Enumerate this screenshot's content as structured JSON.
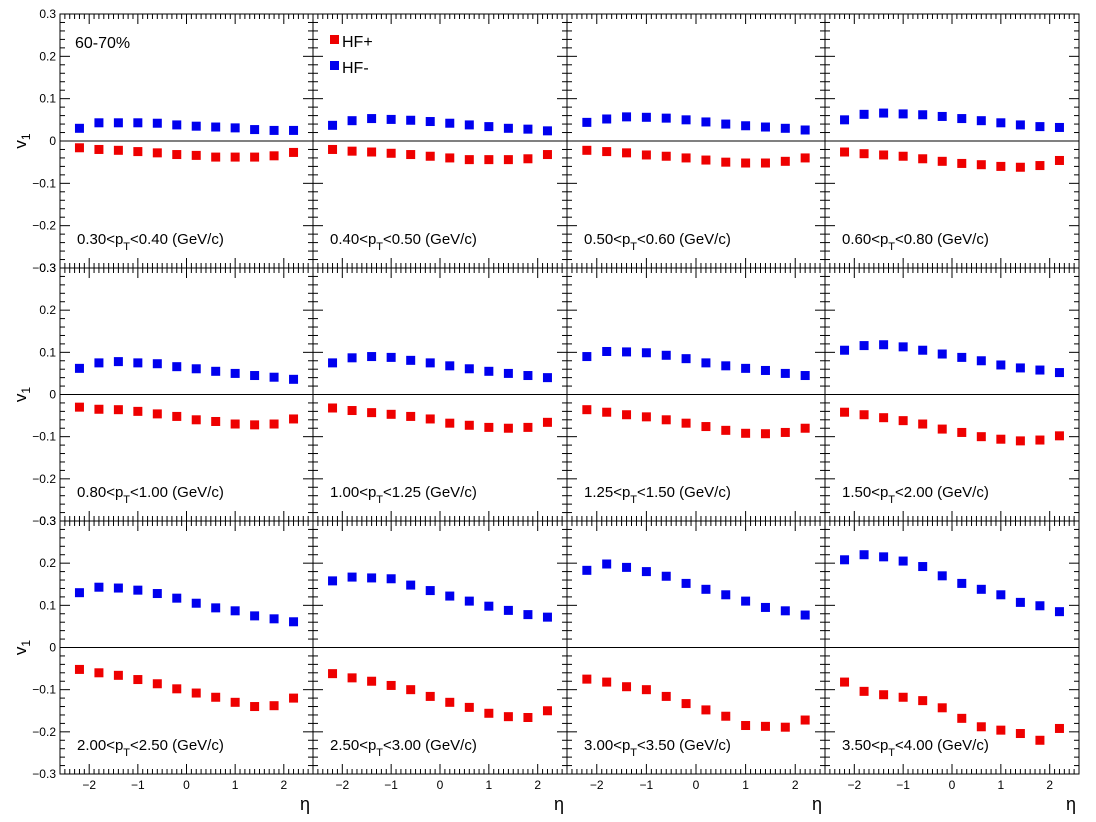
{
  "figure": {
    "centrality_label": "60-70%",
    "eta_label": "η",
    "v1_main": "v",
    "v1_sub": "1",
    "legend": [
      {
        "name": "HF+",
        "color": "#ee0000"
      },
      {
        "name": "HF-",
        "color": "#0000ee"
      }
    ],
    "pt_prefix": "p",
    "pt_sub": "T",
    "pt_unit": "(GeV/c)",
    "y_ticks": [
      {
        "v": 0.3,
        "label": "0.3"
      },
      {
        "v": 0.2,
        "label": "0.2"
      },
      {
        "v": 0.1,
        "label": "0.1"
      },
      {
        "v": 0,
        "label": "0"
      },
      {
        "v": -0.1,
        "label": "−0.1"
      },
      {
        "v": -0.2,
        "label": "−0.2"
      },
      {
        "v": -0.3,
        "label": "−0.3"
      }
    ],
    "x_ticks": [
      {
        "v": -2,
        "label": "−2"
      },
      {
        "v": -1,
        "label": "−1"
      },
      {
        "v": 0,
        "label": "0"
      },
      {
        "v": 1,
        "label": "1"
      },
      {
        "v": 2,
        "label": "2"
      }
    ]
  },
  "chart_data": {
    "type": "scatter",
    "xlabel": "η",
    "ylabel": "v1",
    "xlim": [
      -2.6,
      2.6
    ],
    "ylim": [
      -0.3,
      0.3
    ],
    "x": [
      -2.2,
      -1.8,
      -1.4,
      -1.0,
      -0.6,
      -0.2,
      0.2,
      0.6,
      1.0,
      1.4,
      1.8,
      2.2
    ],
    "panels": [
      {
        "lo": "0.30",
        "hi": "0.40",
        "hfp": [
          -0.016,
          -0.02,
          -0.022,
          -0.025,
          -0.028,
          -0.032,
          -0.034,
          -0.038,
          -0.038,
          -0.038,
          -0.035,
          -0.027
        ],
        "hfm": [
          0.03,
          0.043,
          0.043,
          0.043,
          0.042,
          0.038,
          0.035,
          0.033,
          0.031,
          0.027,
          0.025,
          0.025
        ]
      },
      {
        "lo": "0.40",
        "hi": "0.50",
        "hfp": [
          -0.02,
          -0.024,
          -0.026,
          -0.029,
          -0.032,
          -0.036,
          -0.04,
          -0.044,
          -0.044,
          -0.044,
          -0.042,
          -0.032
        ],
        "hfm": [
          0.037,
          0.048,
          0.053,
          0.051,
          0.049,
          0.046,
          0.042,
          0.038,
          0.034,
          0.03,
          0.028,
          0.024
        ]
      },
      {
        "lo": "0.50",
        "hi": "0.60",
        "hfp": [
          -0.022,
          -0.025,
          -0.028,
          -0.033,
          -0.036,
          -0.04,
          -0.045,
          -0.05,
          -0.052,
          -0.052,
          -0.048,
          -0.04
        ],
        "hfm": [
          0.044,
          0.052,
          0.057,
          0.056,
          0.054,
          0.05,
          0.045,
          0.04,
          0.036,
          0.033,
          0.03,
          0.026
        ]
      },
      {
        "lo": "0.60",
        "hi": "0.80",
        "hfp": [
          -0.026,
          -0.03,
          -0.033,
          -0.036,
          -0.042,
          -0.048,
          -0.053,
          -0.056,
          -0.06,
          -0.062,
          -0.058,
          -0.046
        ],
        "hfm": [
          0.05,
          0.063,
          0.066,
          0.064,
          0.062,
          0.058,
          0.053,
          0.048,
          0.043,
          0.038,
          0.034,
          0.032
        ]
      },
      {
        "lo": "0.80",
        "hi": "1.00",
        "hfp": [
          -0.03,
          -0.035,
          -0.036,
          -0.04,
          -0.046,
          -0.052,
          -0.06,
          -0.064,
          -0.07,
          -0.072,
          -0.07,
          -0.058
        ],
        "hfm": [
          0.062,
          0.075,
          0.078,
          0.075,
          0.073,
          0.066,
          0.061,
          0.055,
          0.05,
          0.045,
          0.041,
          0.036
        ]
      },
      {
        "lo": "1.00",
        "hi": "1.25",
        "hfp": [
          -0.032,
          -0.038,
          -0.043,
          -0.047,
          -0.052,
          -0.058,
          -0.068,
          -0.073,
          -0.078,
          -0.08,
          -0.078,
          -0.066
        ],
        "hfm": [
          0.075,
          0.087,
          0.09,
          0.088,
          0.081,
          0.075,
          0.068,
          0.061,
          0.055,
          0.05,
          0.045,
          0.04
        ]
      },
      {
        "lo": "1.25",
        "hi": "1.50",
        "hfp": [
          -0.036,
          -0.042,
          -0.048,
          -0.053,
          -0.06,
          -0.068,
          -0.076,
          -0.085,
          -0.092,
          -0.093,
          -0.09,
          -0.08
        ],
        "hfm": [
          0.09,
          0.102,
          0.101,
          0.099,
          0.093,
          0.085,
          0.075,
          0.068,
          0.062,
          0.057,
          0.05,
          0.045
        ]
      },
      {
        "lo": "1.50",
        "hi": "2.00",
        "hfp": [
          -0.042,
          -0.048,
          -0.055,
          -0.062,
          -0.07,
          -0.082,
          -0.09,
          -0.1,
          -0.106,
          -0.11,
          -0.108,
          -0.098
        ],
        "hfm": [
          0.105,
          0.116,
          0.118,
          0.113,
          0.105,
          0.096,
          0.088,
          0.08,
          0.07,
          0.063,
          0.058,
          0.052
        ]
      },
      {
        "lo": "2.00",
        "hi": "2.50",
        "hfp": [
          -0.052,
          -0.06,
          -0.066,
          -0.076,
          -0.086,
          -0.098,
          -0.108,
          -0.118,
          -0.13,
          -0.14,
          -0.138,
          -0.12
        ],
        "hfm": [
          0.13,
          0.143,
          0.141,
          0.136,
          0.128,
          0.117,
          0.105,
          0.094,
          0.087,
          0.075,
          0.068,
          0.061
        ]
      },
      {
        "lo": "2.50",
        "hi": "3.00",
        "hfp": [
          -0.062,
          -0.072,
          -0.08,
          -0.09,
          -0.1,
          -0.116,
          -0.13,
          -0.142,
          -0.156,
          -0.164,
          -0.166,
          -0.15
        ],
        "hfm": [
          0.158,
          0.167,
          0.165,
          0.163,
          0.148,
          0.135,
          0.122,
          0.11,
          0.098,
          0.088,
          0.078,
          0.072
        ]
      },
      {
        "lo": "3.00",
        "hi": "3.50",
        "hfp": [
          -0.075,
          -0.082,
          -0.093,
          -0.1,
          -0.116,
          -0.133,
          -0.148,
          -0.163,
          -0.185,
          -0.187,
          -0.189,
          -0.172
        ],
        "hfm": [
          0.183,
          0.198,
          0.19,
          0.18,
          0.169,
          0.152,
          0.138,
          0.125,
          0.11,
          0.095,
          0.087,
          0.077
        ]
      },
      {
        "lo": "3.50",
        "hi": "4.00",
        "hfp": [
          -0.082,
          -0.104,
          -0.112,
          -0.118,
          -0.126,
          -0.143,
          -0.168,
          -0.188,
          -0.196,
          -0.204,
          -0.22,
          -0.192
        ],
        "hfm": [
          0.208,
          0.22,
          0.215,
          0.205,
          0.192,
          0.17,
          0.152,
          0.138,
          0.125,
          0.107,
          0.099,
          0.085
        ]
      }
    ]
  }
}
